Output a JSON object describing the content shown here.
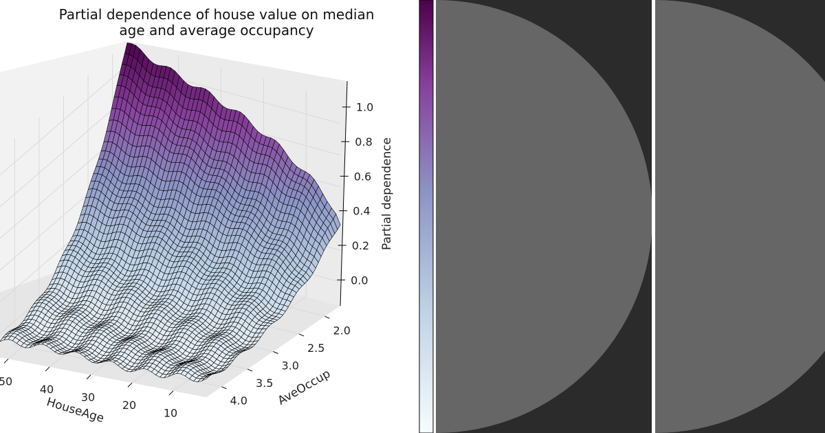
{
  "chart_data": {
    "type": "surface",
    "title": [
      "Partial dependence of house value on median",
      "age and average occupancy"
    ],
    "xlabel": "HouseAge",
    "ylabel": "AveOccup",
    "zlabel": "Partial dependence",
    "x_ticks": [
      "50",
      "40",
      "30",
      "20",
      "10"
    ],
    "y_ticks": [
      "2.0",
      "2.5",
      "3.0",
      "3.5",
      "4.0"
    ],
    "z_ticks": [
      "0.0",
      "0.2",
      "0.4",
      "0.6",
      "0.8",
      "1.0"
    ],
    "x_range": [
      52,
      2
    ],
    "y_range": [
      4.3,
      1.7
    ],
    "z_range": [
      -0.15,
      1.15
    ],
    "cmap": [
      "#f7fcfd",
      "#bfd3e6",
      "#8c96c6",
      "#88419d",
      "#4d004b"
    ],
    "grid": true,
    "colorbar": true,
    "surface_peak": {
      "x_at_max_z": 52,
      "y_at_max_z": 1.75,
      "max_z": 1.15
    },
    "grid_points": {
      "x": 50,
      "y": 50
    },
    "edge_values": {
      "z_at_front_left_corner": -0.05,
      "z_at_right_corner": 0.38
    }
  },
  "colors": {
    "panel_dark": "#2b2b2b",
    "disc_gray": "#666666",
    "pane_fill": "#f2f2f2"
  }
}
